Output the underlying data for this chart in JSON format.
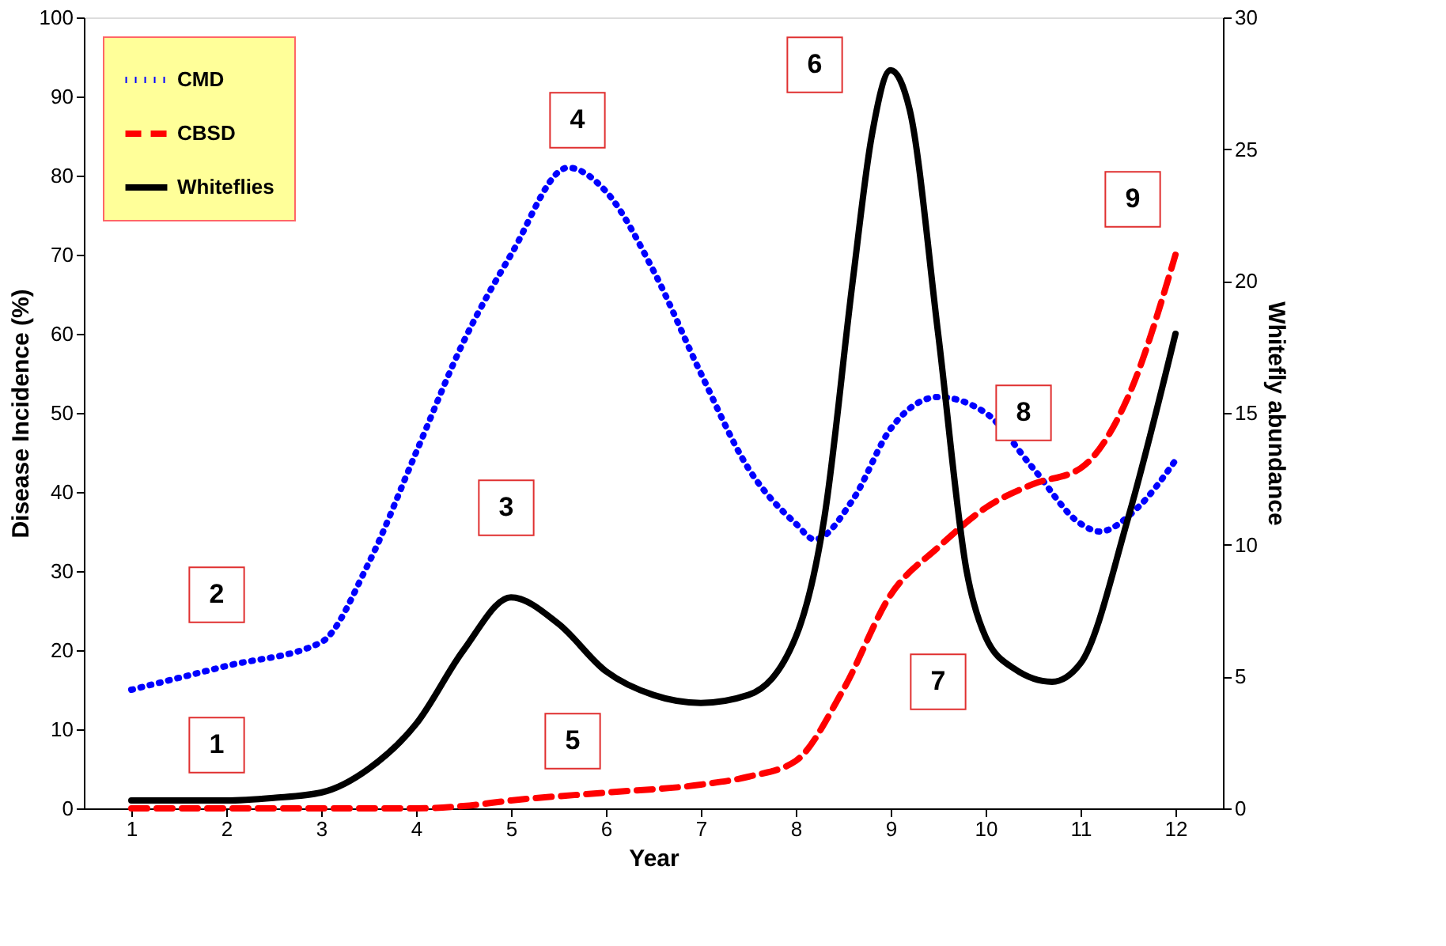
{
  "chart_data": {
    "type": "line",
    "xlabel": "Year",
    "ylabel": "Disease Incidence (%)",
    "y2label": "Whitefly abundance",
    "xlim": [
      0.5,
      12.5
    ],
    "xticks": [
      1,
      2,
      3,
      4,
      5,
      6,
      7,
      8,
      9,
      10,
      11,
      12
    ],
    "ylim": [
      0,
      100
    ],
    "yticks": [
      0,
      10,
      20,
      30,
      40,
      50,
      60,
      70,
      80,
      90,
      100
    ],
    "y2lim": [
      0,
      30
    ],
    "y2ticks": [
      0,
      5,
      10,
      15,
      20,
      25,
      30
    ],
    "grid": false,
    "legend": "top left",
    "marker": "none",
    "series": [
      {
        "name": "CMD",
        "color": "#0000ff",
        "line_style": "dotted",
        "x": [
          1,
          2,
          3,
          3.5,
          4,
          4.5,
          5,
          5.6,
          6,
          6.5,
          7,
          7.5,
          8,
          8.2,
          8.6,
          9,
          9.5,
          10,
          10.5,
          11,
          11.2,
          11.6,
          12
        ],
        "values": [
          15,
          18,
          21,
          31,
          45,
          59,
          70,
          81,
          78,
          68,
          55,
          43,
          36,
          34,
          39,
          48,
          52,
          50,
          43,
          36,
          35,
          38,
          44
        ]
      },
      {
        "name": "CBSD",
        "color": "#ff0000",
        "line_style": "dashed",
        "x": [
          1,
          2,
          3,
          4,
          4.5,
          5,
          6,
          7,
          7.5,
          8,
          8.5,
          9,
          9.5,
          10,
          10.5,
          11,
          11.5,
          12
        ],
        "values": [
          0,
          0,
          0,
          0,
          0.3,
          1,
          2,
          3,
          4,
          6,
          15,
          27,
          33,
          38,
          41,
          43,
          52,
          70
        ]
      },
      {
        "name": "Whiteflies",
        "color": "#000000",
        "line_style": "solid",
        "axis": "y2",
        "x": [
          1,
          2,
          2.5,
          3,
          3.5,
          4,
          4.5,
          5,
          5.5,
          6,
          6.5,
          7,
          7.5,
          8,
          8.3,
          8.6,
          8.8,
          9,
          9.2,
          9.5,
          9.8,
          10,
          10.3,
          10.7,
          11,
          11.5,
          12
        ],
        "values": [
          0.3,
          0.3,
          0.4,
          0.6,
          1.5,
          3.2,
          6,
          8,
          7,
          5.2,
          4.3,
          4,
          4.3,
          6.5,
          11,
          20,
          25.5,
          28,
          26.5,
          18,
          9,
          6.5,
          5.3,
          4.8,
          5.5,
          11,
          18
        ]
      }
    ],
    "annotations": [
      {
        "text": "1",
        "x": 1.9,
        "y": 8
      },
      {
        "text": "2",
        "x": 1.9,
        "y": 27
      },
      {
        "text": "3",
        "x": 4.95,
        "y": 38
      },
      {
        "text": "4",
        "x": 5.7,
        "y": 87
      },
      {
        "text": "5",
        "x": 5.65,
        "y": 8.5
      },
      {
        "text": "6",
        "x": 8.2,
        "y": 94
      },
      {
        "text": "7",
        "x": 9.5,
        "y": 16
      },
      {
        "text": "8",
        "x": 10.4,
        "y": 50
      },
      {
        "text": "9",
        "x": 11.55,
        "y": 77
      }
    ]
  }
}
